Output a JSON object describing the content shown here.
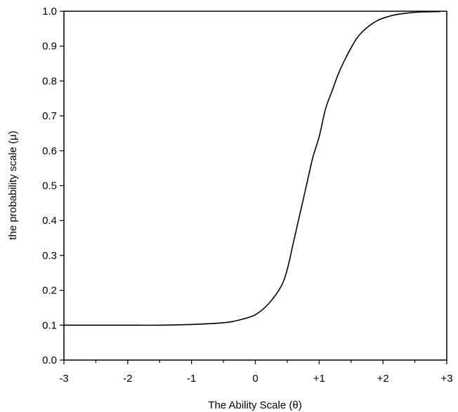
{
  "chart_data": {
    "type": "line",
    "title": "",
    "xlabel": "The Ability Scale (θ)",
    "ylabel": "the probability scale (μ)",
    "xlim": [
      -3,
      3
    ],
    "ylim": [
      0.0,
      1.0
    ],
    "grid": false,
    "legend": "none",
    "x_ticks": [
      -3,
      -2,
      -1,
      0,
      1,
      2,
      3
    ],
    "x_tick_labels": [
      "-3",
      "-2",
      "-1",
      "0",
      "+1",
      "+2",
      "+3"
    ],
    "y_ticks": [
      0.0,
      0.1,
      0.2,
      0.3,
      0.4,
      0.5,
      0.6,
      0.7,
      0.8,
      0.9,
      1.0
    ],
    "y_tick_labels": [
      "0.0",
      "0.1",
      "0.2",
      "0.3",
      "0.4",
      "0.5",
      "0.6",
      "0.7",
      "0.8",
      "0.9",
      "1.0"
    ],
    "line_color": "#000000",
    "series": [
      {
        "x": [
          -3.0,
          -2.5,
          -2.0,
          -1.5,
          -1.0,
          -0.5,
          -0.25,
          0.0,
          0.2,
          0.4,
          0.5,
          0.6,
          0.7,
          0.8,
          0.9,
          1.0,
          1.1,
          1.2,
          1.3,
          1.4,
          1.5,
          1.6,
          1.7,
          1.8,
          1.9,
          2.0,
          2.2,
          2.4,
          2.6,
          2.9
        ],
        "y": [
          0.1,
          0.1,
          0.1,
          0.1,
          0.102,
          0.107,
          0.115,
          0.13,
          0.16,
          0.21,
          0.26,
          0.34,
          0.42,
          0.5,
          0.58,
          0.64,
          0.72,
          0.77,
          0.82,
          0.86,
          0.895,
          0.925,
          0.945,
          0.96,
          0.972,
          0.98,
          0.99,
          0.995,
          0.998,
          0.999
        ]
      }
    ]
  }
}
